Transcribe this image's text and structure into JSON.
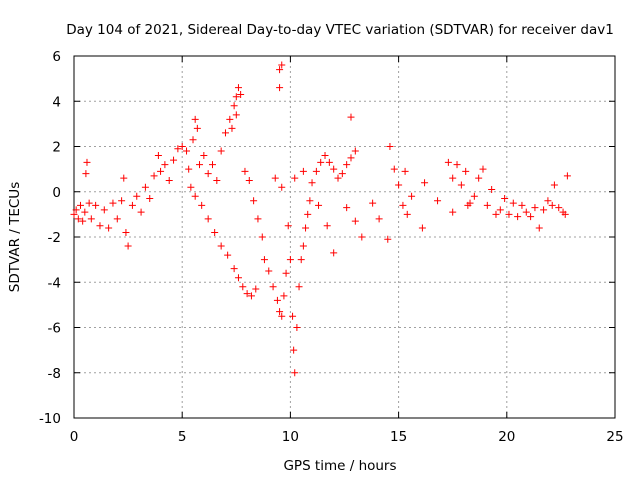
{
  "chart_data": {
    "type": "scatter",
    "title": "Day 104 of 2021, Sidereal Day-to-day VTEC variation (SDTVAR) for receiver dav1",
    "xlabel": "GPS time / hours",
    "ylabel": "SDTVAR / TECUs",
    "xlim": [
      0,
      25
    ],
    "ylim": [
      -10,
      6
    ],
    "xticks": [
      0,
      5,
      10,
      15,
      20,
      25
    ],
    "yticks": [
      6,
      4,
      2,
      0,
      -2,
      -4,
      -6,
      -8,
      -10
    ],
    "xtick_labels": [
      "0",
      "5",
      "10",
      "15",
      "20",
      "25"
    ],
    "ytick_labels": [
      "6",
      "4",
      "2",
      "0",
      "-2",
      "-4",
      "-6",
      "-8",
      "-10"
    ],
    "grid": true,
    "marker": "+",
    "color": "#ff0000",
    "series": [
      {
        "name": "SDTVAR",
        "points": [
          [
            0.0,
            -1.0
          ],
          [
            0.1,
            -0.8
          ],
          [
            0.2,
            -1.2
          ],
          [
            0.3,
            -0.6
          ],
          [
            0.4,
            -1.3
          ],
          [
            0.5,
            -0.9
          ],
          [
            0.55,
            0.8
          ],
          [
            0.6,
            1.3
          ],
          [
            0.7,
            -0.5
          ],
          [
            0.8,
            -1.2
          ],
          [
            1.0,
            -0.6
          ],
          [
            1.2,
            -1.5
          ],
          [
            1.4,
            -0.8
          ],
          [
            1.6,
            -1.6
          ],
          [
            1.8,
            -0.5
          ],
          [
            2.0,
            -1.2
          ],
          [
            2.2,
            -0.4
          ],
          [
            2.3,
            0.6
          ],
          [
            2.4,
            -1.8
          ],
          [
            2.5,
            -2.4
          ],
          [
            2.7,
            -0.6
          ],
          [
            2.9,
            -0.2
          ],
          [
            3.1,
            -0.9
          ],
          [
            3.3,
            0.2
          ],
          [
            3.5,
            -0.3
          ],
          [
            3.7,
            0.7
          ],
          [
            3.9,
            1.6
          ],
          [
            4.0,
            0.9
          ],
          [
            4.2,
            1.2
          ],
          [
            4.4,
            0.5
          ],
          [
            4.6,
            1.4
          ],
          [
            4.8,
            1.9
          ],
          [
            5.0,
            2.0
          ],
          [
            5.2,
            1.8
          ],
          [
            5.3,
            1.0
          ],
          [
            5.4,
            0.2
          ],
          [
            5.5,
            2.3
          ],
          [
            5.6,
            3.2
          ],
          [
            5.7,
            2.8
          ],
          [
            5.8,
            1.2
          ],
          [
            6.0,
            1.6
          ],
          [
            6.2,
            0.8
          ],
          [
            6.4,
            1.2
          ],
          [
            6.6,
            0.5
          ],
          [
            6.8,
            1.8
          ],
          [
            7.0,
            2.6
          ],
          [
            7.2,
            3.2
          ],
          [
            7.4,
            3.8
          ],
          [
            7.5,
            4.2
          ],
          [
            7.6,
            4.6
          ],
          [
            7.7,
            4.3
          ],
          [
            7.5,
            3.4
          ],
          [
            7.3,
            2.8
          ],
          [
            5.6,
            -0.2
          ],
          [
            5.9,
            -0.6
          ],
          [
            6.2,
            -1.2
          ],
          [
            6.5,
            -1.8
          ],
          [
            6.8,
            -2.4
          ],
          [
            7.1,
            -2.8
          ],
          [
            7.4,
            -3.4
          ],
          [
            7.6,
            -3.8
          ],
          [
            7.8,
            -4.2
          ],
          [
            8.0,
            -4.5
          ],
          [
            8.2,
            -4.6
          ],
          [
            8.4,
            -4.3
          ],
          [
            7.9,
            0.9
          ],
          [
            8.1,
            0.5
          ],
          [
            8.3,
            -0.4
          ],
          [
            8.5,
            -1.2
          ],
          [
            8.7,
            -2.0
          ],
          [
            8.8,
            -3.0
          ],
          [
            9.0,
            -3.5
          ],
          [
            9.2,
            -4.2
          ],
          [
            9.4,
            -4.8
          ],
          [
            9.5,
            -5.3
          ],
          [
            9.6,
            -5.5
          ],
          [
            9.7,
            -4.6
          ],
          [
            9.8,
            -3.6
          ],
          [
            9.5,
            4.6
          ],
          [
            9.5,
            5.4
          ],
          [
            9.6,
            5.6
          ],
          [
            9.3,
            0.6
          ],
          [
            9.6,
            0.2
          ],
          [
            9.9,
            -1.5
          ],
          [
            10.0,
            -3.0
          ],
          [
            10.1,
            -5.5
          ],
          [
            10.15,
            -7.0
          ],
          [
            10.2,
            -8.0
          ],
          [
            10.3,
            -6.0
          ],
          [
            10.4,
            -4.2
          ],
          [
            10.5,
            -3.0
          ],
          [
            10.6,
            -2.4
          ],
          [
            10.7,
            -1.6
          ],
          [
            10.8,
            -1.0
          ],
          [
            10.9,
            -0.4
          ],
          [
            11.0,
            0.4
          ],
          [
            11.2,
            0.9
          ],
          [
            11.4,
            1.3
          ],
          [
            11.6,
            1.6
          ],
          [
            11.8,
            1.3
          ],
          [
            12.0,
            1.0
          ],
          [
            12.2,
            0.6
          ],
          [
            12.4,
            0.8
          ],
          [
            12.6,
            1.2
          ],
          [
            12.8,
            1.5
          ],
          [
            13.0,
            1.8
          ],
          [
            12.8,
            3.3
          ],
          [
            10.2,
            0.6
          ],
          [
            10.6,
            0.9
          ],
          [
            11.3,
            -0.6
          ],
          [
            11.7,
            -1.5
          ],
          [
            12.0,
            -2.7
          ],
          [
            12.6,
            -0.7
          ],
          [
            13.0,
            -1.3
          ],
          [
            13.3,
            -2.0
          ],
          [
            13.8,
            -0.5
          ],
          [
            14.1,
            -1.2
          ],
          [
            14.5,
            -2.1
          ],
          [
            14.6,
            2.0
          ],
          [
            14.8,
            1.0
          ],
          [
            15.0,
            0.3
          ],
          [
            15.2,
            -0.6
          ],
          [
            15.4,
            -1.0
          ],
          [
            15.6,
            -0.2
          ],
          [
            15.3,
            0.9
          ],
          [
            16.1,
            -1.6
          ],
          [
            16.2,
            0.4
          ],
          [
            16.8,
            -0.4
          ],
          [
            17.3,
            1.3
          ],
          [
            17.5,
            0.6
          ],
          [
            17.7,
            1.2
          ],
          [
            17.9,
            0.3
          ],
          [
            18.1,
            0.9
          ],
          [
            18.3,
            -0.5
          ],
          [
            18.5,
            -0.2
          ],
          [
            18.7,
            0.6
          ],
          [
            18.9,
            1.0
          ],
          [
            19.1,
            -0.6
          ],
          [
            19.3,
            0.1
          ],
          [
            19.5,
            -1.0
          ],
          [
            19.7,
            -0.8
          ],
          [
            19.9,
            -0.3
          ],
          [
            20.1,
            -1.0
          ],
          [
            20.3,
            -0.5
          ],
          [
            20.5,
            -1.1
          ],
          [
            20.7,
            -0.6
          ],
          [
            20.9,
            -0.9
          ],
          [
            21.1,
            -1.1
          ],
          [
            21.3,
            -0.7
          ],
          [
            21.5,
            -1.6
          ],
          [
            21.7,
            -0.8
          ],
          [
            21.9,
            -0.4
          ],
          [
            22.1,
            -0.6
          ],
          [
            22.2,
            0.3
          ],
          [
            22.4,
            -0.7
          ],
          [
            22.6,
            -0.9
          ],
          [
            22.8,
            0.7
          ],
          [
            22.7,
            -1.0
          ],
          [
            17.5,
            -0.9
          ],
          [
            18.2,
            -0.6
          ]
        ]
      }
    ]
  }
}
